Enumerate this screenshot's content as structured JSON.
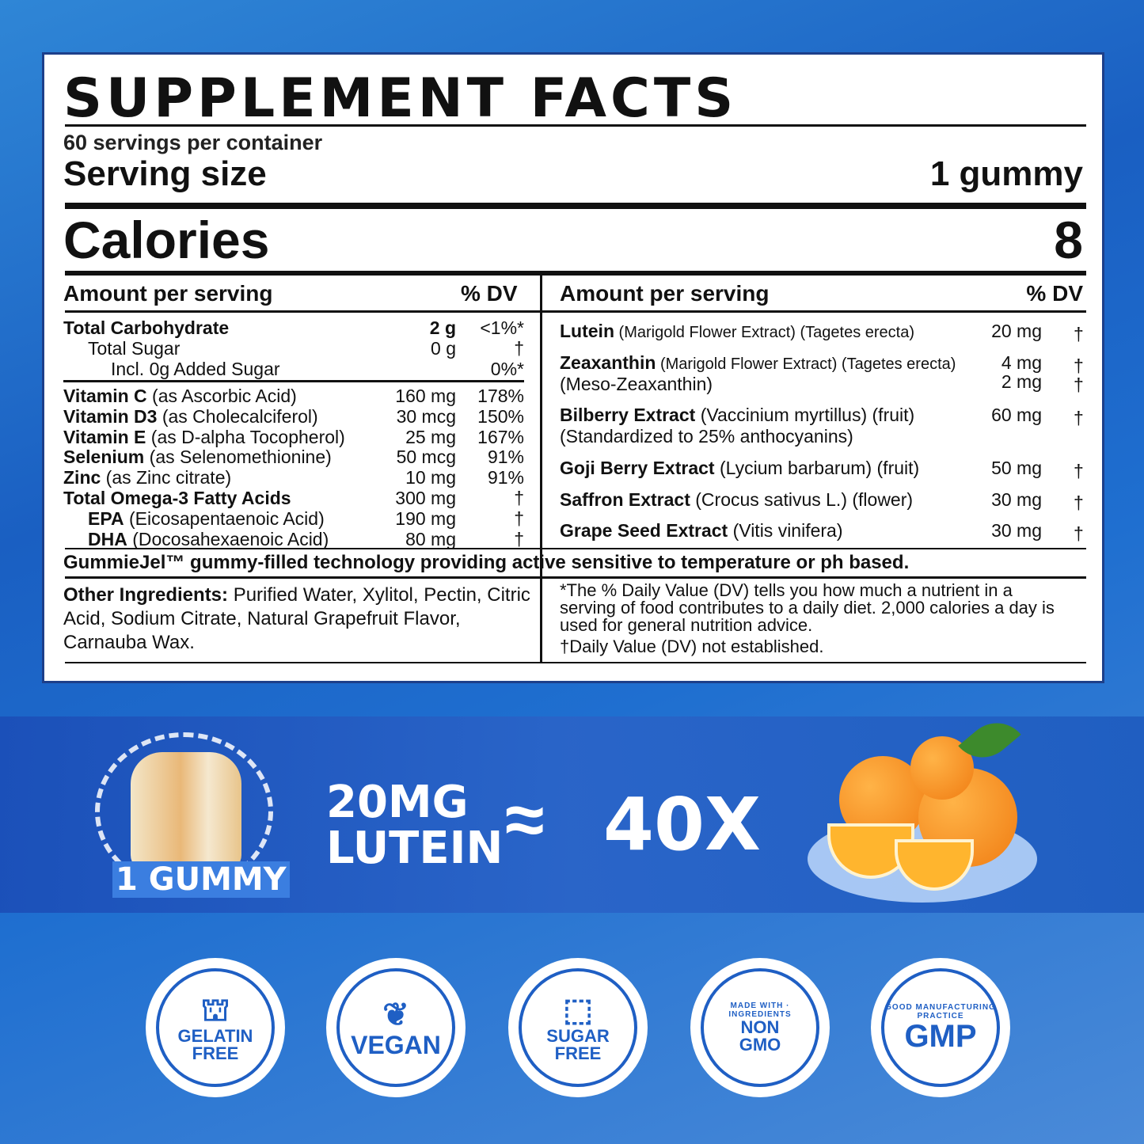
{
  "title": "SUPPLEMENT FACTS",
  "servings_per_container": "60 servings per container",
  "serving_size_label": "Serving size",
  "serving_size_value": "1 gummy",
  "calories_label": "Calories",
  "calories_value": "8",
  "header": {
    "amount": "Amount per serving",
    "dv": "% DV"
  },
  "left_rows": [
    {
      "name": "Total Carbohydrate",
      "desc": "",
      "amount": "2 g",
      "dv": "<1%*",
      "indent": 0
    },
    {
      "name": "",
      "desc": "Total Sugar",
      "amount": "0 g",
      "dv": "†",
      "indent": 1
    },
    {
      "name": "",
      "desc": "Incl. 0g Added Sugar",
      "amount": "",
      "dv": "0%*",
      "indent": 2
    },
    {
      "name": "Vitamin C",
      "desc": " (as Ascorbic Acid)",
      "amount": "160 mg",
      "dv": "178%",
      "indent": 0
    },
    {
      "name": "Vitamin D3",
      "desc": " (as Cholecalciferol)",
      "amount": "30 mcg",
      "dv": "150%",
      "indent": 0
    },
    {
      "name": "Vitamin E",
      "desc": " (as D-alpha Tocopherol)",
      "amount": "25 mg",
      "dv": "167%",
      "indent": 0
    },
    {
      "name": "Selenium",
      "desc": " (as Selenomethionine)",
      "amount": "50 mcg",
      "dv": "91%",
      "indent": 0
    },
    {
      "name": "Zinc",
      "desc": " (as Zinc citrate)",
      "amount": "10 mg",
      "dv": "91%",
      "indent": 0
    },
    {
      "name": "Total Omega-3 Fatty Acids",
      "desc": "",
      "amount": "300 mg",
      "dv": "†",
      "indent": 0
    },
    {
      "name": "EPA",
      "desc": " (Eicosapentaenoic Acid)",
      "amount": "190 mg",
      "dv": "†",
      "indent": 1
    },
    {
      "name": "DHA",
      "desc": " (Docosahexaenoic Acid)",
      "amount": "80 mg",
      "dv": "†",
      "indent": 1
    }
  ],
  "right_rows": [
    {
      "name": "Lutein",
      "desc": " (Marigold Flower Extract) (Tagetes erecta)",
      "amount": "20 mg",
      "dv": "†"
    },
    {
      "name": "Zeaxanthin",
      "desc": " (Marigold Flower Extract) (Tagetes erecta)",
      "amount": "4 mg",
      "dv": "†",
      "line2": "(Meso-Zeaxanthin)",
      "amount2": "2 mg",
      "dv2": "†"
    },
    {
      "name": "Bilberry Extract",
      "desc": " (Vaccinium myrtillus) (fruit)",
      "amount": "60 mg",
      "dv": "†",
      "line2": "(Standardized to 25% anthocyanins)"
    },
    {
      "name": "Goji Berry Extract",
      "desc": " (Lycium barbarum) (fruit)",
      "amount": "50 mg",
      "dv": "†"
    },
    {
      "name": "Saffron Extract",
      "desc": " (Crocus sativus L.) (flower)",
      "amount": "30 mg",
      "dv": "†"
    },
    {
      "name": "Grape Seed Extract",
      "desc": " (Vitis vinifera)",
      "amount": "30 mg",
      "dv": "†"
    }
  ],
  "gummiejel": "GummieJel™ gummy-filled technology providing active sensitive to temperature or ph based.",
  "other_label": "Other Ingredients:",
  "other_text": " Purified Water, Xylitol, Pectin, Citric Acid, Sodium Citrate, Natural Grapefruit Flavor, Carnauba Wax.",
  "footnote": "*The % Daily Value (DV) tells you how much a nutrient in a serving of food contributes to a daily diet. 2,000 calories a day is used for general nutrition advice.",
  "footnote2": "†Daily Value (DV) not established.",
  "promo": {
    "gummy": "1 GUMMY",
    "line1": "20MG",
    "line2": "LUTEIN",
    "approx": "≈",
    "multiplier": "40X"
  },
  "badges": [
    {
      "l1": "GELATIN",
      "l2": "FREE",
      "icon": "jelly-icon"
    },
    {
      "l1": "VEGAN",
      "l2": "",
      "icon": "leaf-icon"
    },
    {
      "l1": "SUGAR",
      "l2": "FREE",
      "icon": "sugar-cube-icon"
    },
    {
      "l1": "NON",
      "l2": "GMO",
      "ring": "MADE WITH · INGREDIENTS"
    },
    {
      "l1": "GMP",
      "l2": "",
      "ring": "GOOD MANUFACTURING PRACTICE"
    }
  ],
  "colors": {
    "brand_blue": "#1f5fc4",
    "label_border": "#1d3f8a",
    "orange": "#f7931e"
  }
}
